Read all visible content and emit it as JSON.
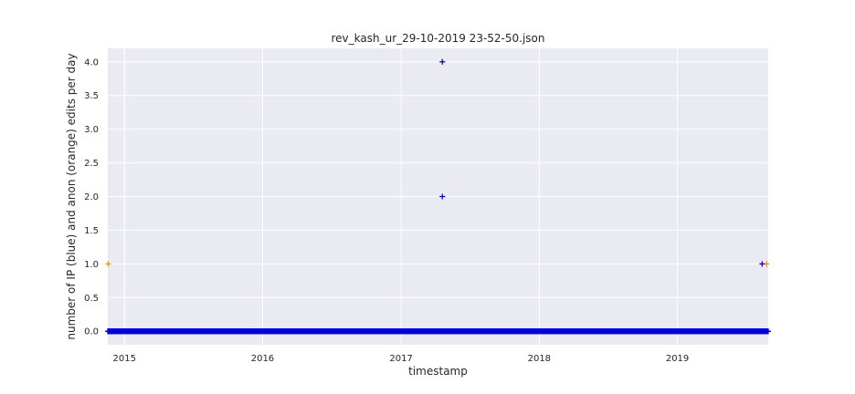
{
  "chart_data": {
    "type": "scatter",
    "title": "rev_kash_ur_29-10-2019 23-52-50.json",
    "xlabel": "timestamp",
    "ylabel": "number of IP (blue) and anon (orange) edits per day",
    "xlim": [
      "2014-11-18",
      "2019-08-29"
    ],
    "ylim": [
      -0.2,
      4.2
    ],
    "x_ticks": [
      "2015",
      "2016",
      "2017",
      "2018",
      "2019"
    ],
    "x_tick_dates": [
      "2015-01-01",
      "2016-01-01",
      "2017-01-01",
      "2018-01-01",
      "2019-01-01"
    ],
    "y_ticks": [
      "0.0",
      "0.5",
      "1.0",
      "1.5",
      "2.0",
      "2.5",
      "3.0",
      "3.5",
      "4.0"
    ],
    "grid": true,
    "background": "#eaeaf2",
    "series": [
      {
        "color": "#ff8c00",
        "marker": "+",
        "points": [
          {
            "x": "2014-11-19",
            "y": 1
          },
          {
            "x": "2017-04-20",
            "y": 4
          },
          {
            "x": "2017-04-20",
            "y": 2
          },
          {
            "x": "2019-08-13",
            "y": 1
          },
          {
            "x": "2019-08-25",
            "y": 1
          }
        ]
      },
      {
        "color": "#0000dd",
        "marker": "+",
        "points": [
          {
            "x": "2017-04-20",
            "y": 4
          },
          {
            "x": "2017-04-20",
            "y": 2
          },
          {
            "x": "2019-08-13",
            "y": 1
          }
        ],
        "zero_range": [
          "2014-11-18",
          "2019-08-29"
        ],
        "zero_value": 0
      }
    ]
  }
}
